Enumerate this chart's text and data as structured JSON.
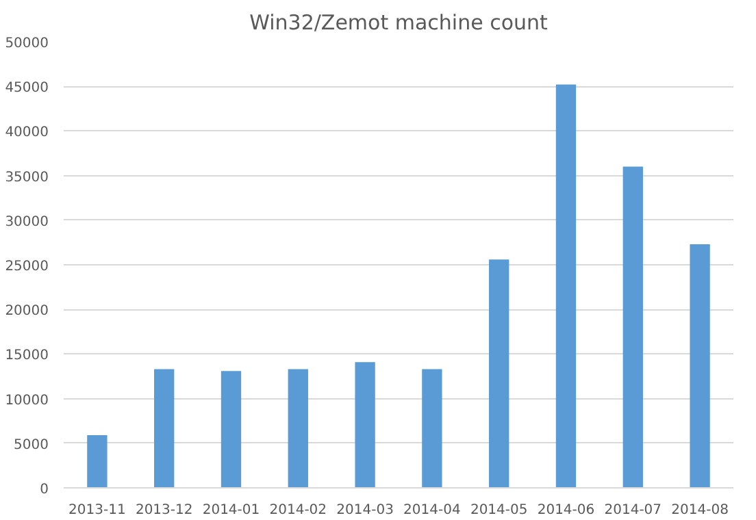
{
  "chart_data": {
    "type": "bar",
    "title": "Win32/Zemot machine count",
    "categories": [
      "2013-11",
      "2013-12",
      "2014-01",
      "2014-02",
      "2014-03",
      "2014-04",
      "2014-05",
      "2014-06",
      "2014-07",
      "2014-08"
    ],
    "values": [
      5900,
      13300,
      13100,
      13300,
      14100,
      13300,
      25600,
      45200,
      36000,
      27300
    ],
    "color": "#5b9bd5",
    "ylim": [
      0,
      50000
    ],
    "yticks": [
      0,
      5000,
      10000,
      15000,
      20000,
      25000,
      30000,
      35000,
      40000,
      45000,
      50000
    ],
    "grid": "y",
    "legend": false
  }
}
